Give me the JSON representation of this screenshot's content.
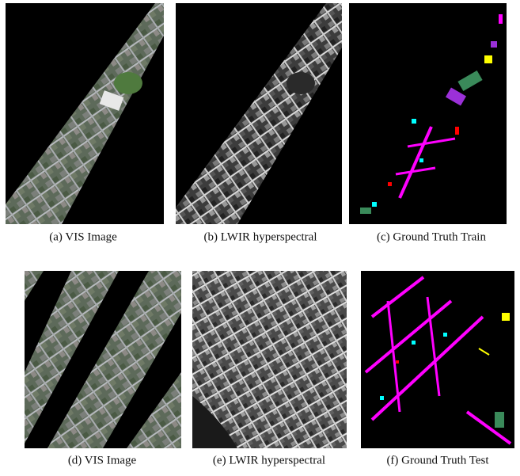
{
  "figures": [
    {
      "caption": "(a) VIS Image"
    },
    {
      "caption": "(b) LWIR hyperspectral"
    },
    {
      "caption": "(c) Ground Truth Train"
    },
    {
      "caption": "(d) VIS Image"
    },
    {
      "caption": "(e) LWIR hyperspectral"
    },
    {
      "caption": "(f) Ground Truth Test"
    }
  ]
}
